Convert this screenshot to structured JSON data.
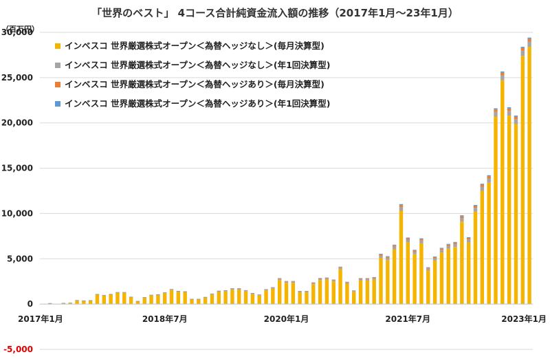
{
  "chart_data": {
    "type": "bar",
    "stacked": true,
    "title": "「世界のベスト」 4コース合計純資金流入額の推移（2017年1月～23年1月）",
    "unit_label": "（百万円）",
    "ylim": [
      -5000,
      30000
    ],
    "y_ticks": [
      30000,
      25000,
      20000,
      15000,
      10000,
      5000,
      0,
      -5000
    ],
    "y_tick_labels": [
      "30,000",
      "25,000",
      "20,000",
      "15,000",
      "10,000",
      "5,000",
      "0",
      "-5,000"
    ],
    "grid": true,
    "legend_position": "top-left",
    "x_tick_labels": [
      {
        "label": "2017年1月",
        "index": 0
      },
      {
        "label": "2018年7月",
        "index": 18
      },
      {
        "label": "2020年1月",
        "index": 36
      },
      {
        "label": "2021年7月",
        "index": 54
      },
      {
        "label": "2023年1月",
        "index": 72
      }
    ],
    "n_months": 73,
    "series": [
      {
        "name": "インベスコ 世界厳選株式オープン＜為替ヘッジなし＞(毎月決算型)",
        "color": "#f5b400",
        "values": [
          0,
          80,
          0,
          100,
          120,
          400,
          360,
          380,
          1050,
          950,
          1050,
          1250,
          1250,
          750,
          300,
          700,
          950,
          1000,
          1200,
          1550,
          1350,
          1300,
          500,
          500,
          700,
          1050,
          1350,
          1400,
          1600,
          1600,
          1400,
          1100,
          950,
          1500,
          1700,
          2650,
          2350,
          2350,
          1300,
          1300,
          2200,
          2650,
          2700,
          2500,
          3850,
          2250,
          1350,
          2600,
          2600,
          2700,
          5100,
          4850,
          6050,
          10300,
          6800,
          5500,
          6700,
          3700,
          4800,
          5700,
          6100,
          6300,
          9100,
          6800,
          10200,
          12500,
          13400,
          20700,
          24700,
          20800,
          19900,
          27400,
          28400
        ]
      },
      {
        "name": "インベスコ 世界厳選株式オープン＜為替ヘッジなし＞(年1回決算型)",
        "color": "#a5a5a5",
        "values": [
          0,
          10,
          0,
          10,
          10,
          20,
          20,
          20,
          30,
          30,
          30,
          40,
          40,
          30,
          20,
          30,
          40,
          40,
          50,
          60,
          60,
          60,
          40,
          40,
          50,
          60,
          70,
          70,
          80,
          80,
          80,
          70,
          60,
          80,
          90,
          120,
          110,
          110,
          80,
          80,
          110,
          130,
          130,
          120,
          160,
          120,
          90,
          150,
          150,
          160,
          260,
          250,
          290,
          420,
          310,
          280,
          320,
          210,
          260,
          290,
          310,
          320,
          400,
          330,
          420,
          450,
          470,
          520,
          560,
          530,
          520,
          570,
          580
        ]
      },
      {
        "name": "インベスコ 世界厳選株式オープン＜為替ヘッジあり＞(毎月決算型)",
        "color": "#ed7d31",
        "values": [
          0,
          5,
          0,
          5,
          5,
          10,
          10,
          10,
          15,
          15,
          15,
          20,
          20,
          15,
          10,
          15,
          20,
          20,
          25,
          30,
          30,
          30,
          20,
          20,
          25,
          30,
          35,
          35,
          40,
          40,
          40,
          35,
          30,
          40,
          45,
          60,
          55,
          55,
          40,
          40,
          55,
          65,
          65,
          60,
          80,
          60,
          45,
          75,
          75,
          80,
          130,
          125,
          145,
          210,
          155,
          140,
          160,
          105,
          130,
          145,
          155,
          160,
          200,
          165,
          210,
          225,
          235,
          260,
          280,
          265,
          260,
          285,
          290
        ]
      },
      {
        "name": "インベスコ 世界厳選株式オープン＜為替ヘッジあり＞(年1回決算型)",
        "color": "#5b9bd5",
        "values": [
          0,
          2,
          0,
          2,
          2,
          5,
          5,
          5,
          8,
          8,
          8,
          10,
          10,
          8,
          5,
          8,
          10,
          10,
          12,
          15,
          15,
          15,
          10,
          10,
          12,
          15,
          18,
          18,
          20,
          20,
          20,
          18,
          15,
          20,
          22,
          30,
          28,
          28,
          20,
          20,
          28,
          32,
          32,
          30,
          40,
          30,
          22,
          38,
          38,
          40,
          65,
          62,
          72,
          105,
          78,
          70,
          80,
          52,
          65,
          72,
          78,
          80,
          100,
          82,
          105,
          112,
          118,
          130,
          140,
          132,
          130,
          142,
          145
        ]
      }
    ]
  }
}
